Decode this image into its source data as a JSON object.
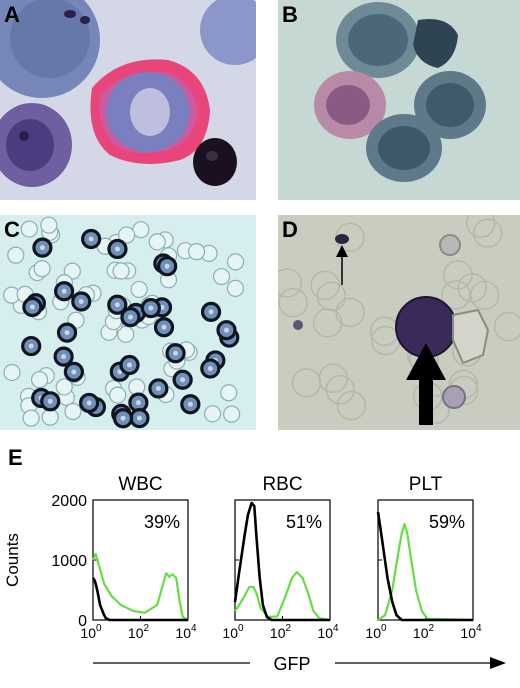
{
  "panels": {
    "A": "A",
    "B": "B",
    "C": "C",
    "D": "D",
    "E": "E"
  },
  "colors": {
    "gfp_series": "#66dd44",
    "control_series": "#000000",
    "bg_A": "#d6d9e8",
    "bg_B": "#c8d8d4",
    "bg_C": "#d4ecec",
    "bg_D": "#c8ccbe"
  },
  "chart_data": [
    {
      "type": "line",
      "title": "WBC",
      "ylabel": "Counts",
      "xlabel": "GFP",
      "xscale": "log",
      "xlim": [
        1,
        10000
      ],
      "ylim": [
        0,
        2000
      ],
      "xticks": [
        "10^0",
        "10^2",
        "10^4"
      ],
      "yticks": [
        0,
        1000,
        2000
      ],
      "percent": "39%",
      "series": [
        {
          "values": [
            [
              1,
              1000
            ],
            [
              1.3,
              1100
            ],
            [
              1.8,
              900
            ],
            [
              3,
              600
            ],
            [
              6,
              400
            ],
            [
              15,
              250
            ],
            [
              50,
              150
            ],
            [
              150,
              120
            ],
            [
              500,
              250
            ],
            [
              900,
              600
            ],
            [
              1200,
              780
            ],
            [
              1600,
              720
            ],
            [
              2200,
              760
            ],
            [
              3200,
              700
            ],
            [
              4500,
              300
            ],
            [
              6000,
              50
            ],
            [
              10000,
              0
            ]
          ]
        },
        {
          "values": [
            [
              1,
              700
            ],
            [
              1.2,
              650
            ],
            [
              1.5,
              500
            ],
            [
              2,
              250
            ],
            [
              2.8,
              100
            ],
            [
              3.5,
              30
            ],
            [
              5,
              0
            ],
            [
              10000,
              0
            ]
          ]
        }
      ]
    },
    {
      "type": "line",
      "title": "RBC",
      "xscale": "log",
      "xlim": [
        1,
        10000
      ],
      "ylim": [
        0,
        2000
      ],
      "xticks": [
        "10^0",
        "10^2",
        "10^4"
      ],
      "yticks": [
        0,
        1000,
        2000
      ],
      "percent": "51%",
      "series": [
        {
          "values": [
            [
              1,
              150
            ],
            [
              1.5,
              250
            ],
            [
              2.5,
              400
            ],
            [
              4,
              550
            ],
            [
              6,
              550
            ],
            [
              8,
              450
            ],
            [
              12,
              200
            ],
            [
              25,
              50
            ],
            [
              60,
              60
            ],
            [
              120,
              350
            ],
            [
              250,
              700
            ],
            [
              400,
              800
            ],
            [
              700,
              700
            ],
            [
              1200,
              450
            ],
            [
              2000,
              150
            ],
            [
              3500,
              30
            ],
            [
              10000,
              0
            ]
          ]
        },
        {
          "values": [
            [
              1,
              300
            ],
            [
              1.5,
              800
            ],
            [
              2.5,
              1400
            ],
            [
              3.5,
              1750
            ],
            [
              5,
              1950
            ],
            [
              6.5,
              1900
            ],
            [
              8,
              1400
            ],
            [
              11,
              700
            ],
            [
              15,
              250
            ],
            [
              22,
              50
            ],
            [
              35,
              0
            ],
            [
              10000,
              0
            ]
          ]
        }
      ]
    },
    {
      "type": "line",
      "title": "PLT",
      "xscale": "log",
      "xlim": [
        1,
        10000
      ],
      "ylim": [
        0,
        2000
      ],
      "xticks": [
        "10^0",
        "10^2",
        "10^4"
      ],
      "yticks": [
        0,
        1000,
        2000
      ],
      "percent": "59%",
      "series": [
        {
          "values": [
            [
              1,
              0
            ],
            [
              2,
              80
            ],
            [
              4,
              500
            ],
            [
              7,
              1100
            ],
            [
              10,
              1450
            ],
            [
              13,
              1600
            ],
            [
              17,
              1450
            ],
            [
              25,
              1000
            ],
            [
              40,
              500
            ],
            [
              70,
              150
            ],
            [
              120,
              20
            ],
            [
              10000,
              0
            ]
          ]
        },
        {
          "values": [
            [
              1,
              1800
            ],
            [
              1.3,
              1500
            ],
            [
              1.8,
              1100
            ],
            [
              2.5,
              700
            ],
            [
              4,
              300
            ],
            [
              6,
              80
            ],
            [
              10,
              0
            ],
            [
              10000,
              0
            ]
          ]
        }
      ]
    }
  ],
  "axis": {
    "counts_label": "Counts",
    "gfp_label": "GFP",
    "ytick_2000": "2000",
    "ytick_1000": "1000",
    "ytick_0": "0"
  }
}
